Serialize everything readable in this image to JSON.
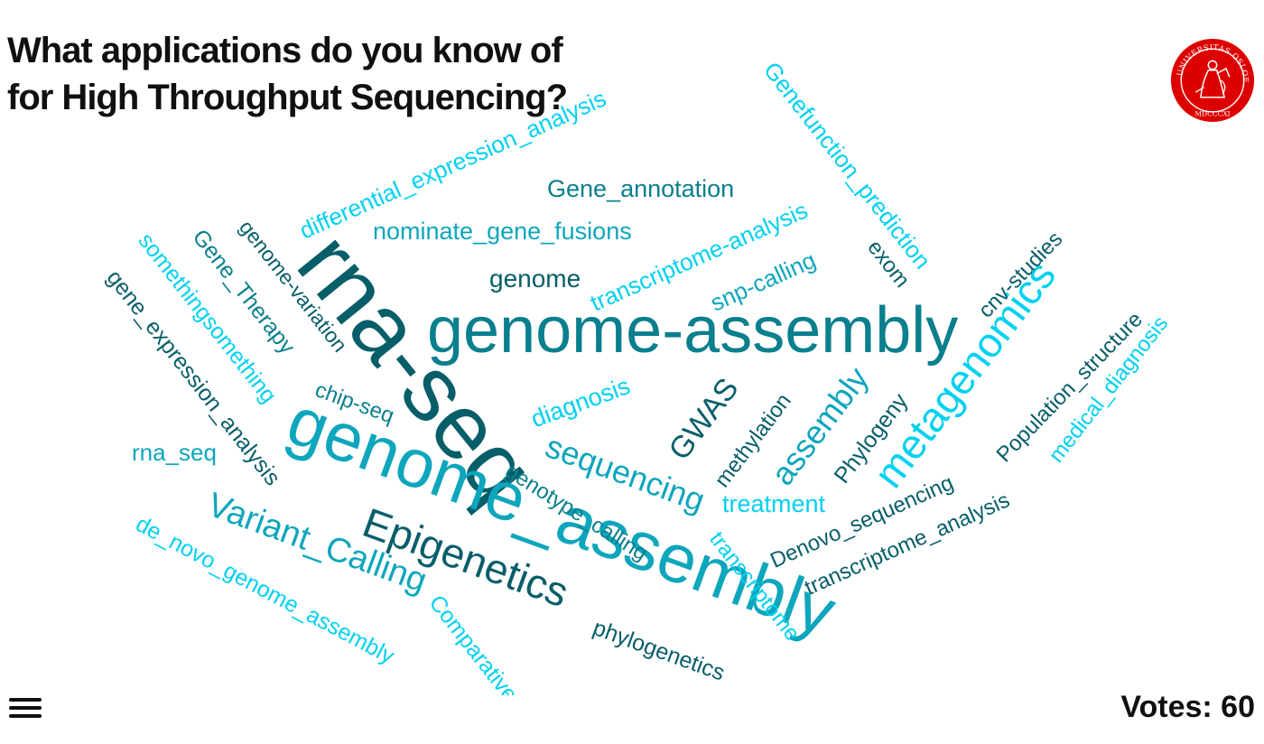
{
  "question": {
    "line1": "What applications do you know of",
    "line2": "for High Throughput Sequencing?"
  },
  "logo": {
    "icon": "university-seal-icon",
    "text": "UNIVERSITAS OSLOENSIS MDCCCXI",
    "color": "#dd0000"
  },
  "footer": {
    "votes_label": "Votes: 60",
    "menu_icon": "hamburger-menu-icon"
  },
  "colors": {
    "dark_teal": "#075e69",
    "teal": "#0a7f8e",
    "mid_cyan": "#0ea6bd",
    "cyan": "#00d1f0"
  },
  "words": [
    "genome-assembly",
    "rna-seq",
    "genome_assembly",
    "metagenomics",
    "Epigenetics",
    "Variant_Calling",
    "assembly",
    "sequencing",
    "GWAS",
    "differential_expression_analysis",
    "Genefunction_prediction",
    "transcriptome-analysis",
    "Gene_annotation",
    "nominate_gene_fusions",
    "genome",
    "snp-calling",
    "exom",
    "cnv-studies",
    "Population_structure",
    "medical_diagnosis",
    "genome-variation",
    "Gene_Therapy",
    "somethingsomething",
    "gene_expression_analysis",
    "chip-seq",
    "diagnosis",
    "methylation",
    "Phylogeny",
    "Denovo_sequencing",
    "transcriptome_analysis",
    "treatment",
    "genotype_calling",
    "transcriptome",
    "rna_seq",
    "de_novo_genome_assembly",
    "Comparative",
    "phylogenetics"
  ]
}
